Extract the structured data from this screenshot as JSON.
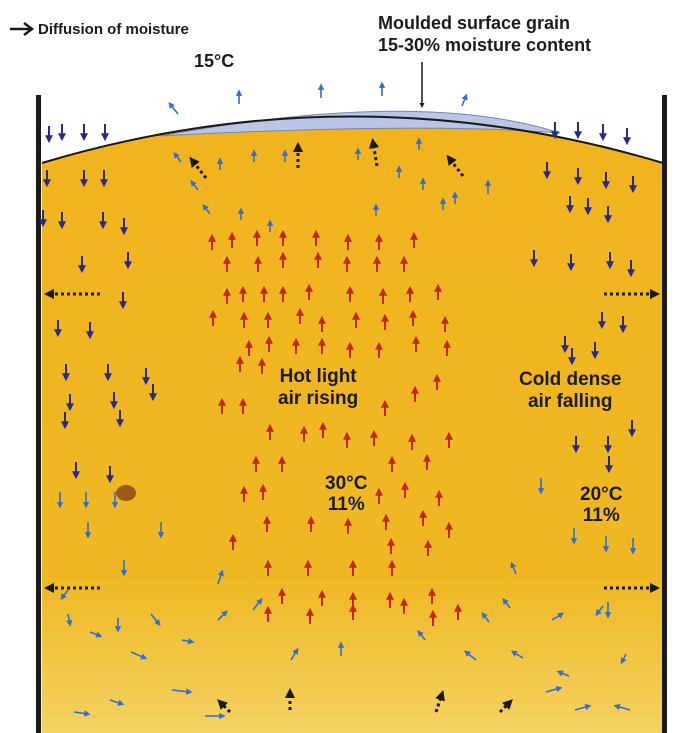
{
  "legend": {
    "arrow_icon": "right-arrow-icon",
    "text": "Diffusion of moisture"
  },
  "labels": {
    "top_temp": "15°C",
    "surface_line1": "Moulded surface grain",
    "surface_line2": "15-30% moisture content",
    "hot_line1": "Hot light",
    "hot_line2": "air rising",
    "cold_line1": "Cold dense",
    "cold_line2": "air falling",
    "center_temp": "30°C",
    "center_moisture": "11%",
    "right_temp": "20°C",
    "right_moisture": "11%"
  },
  "colors": {
    "grain": "#f0b41e",
    "grain_light": "#f5cf60",
    "mould": "#b9c6e6",
    "wall": "#1a1a1a",
    "arrow_hot": "#c6261a",
    "arrow_cold": "#2a2a88",
    "arrow_blue": "#2f6fd0",
    "arrow_black": "#1a1a1a"
  }
}
